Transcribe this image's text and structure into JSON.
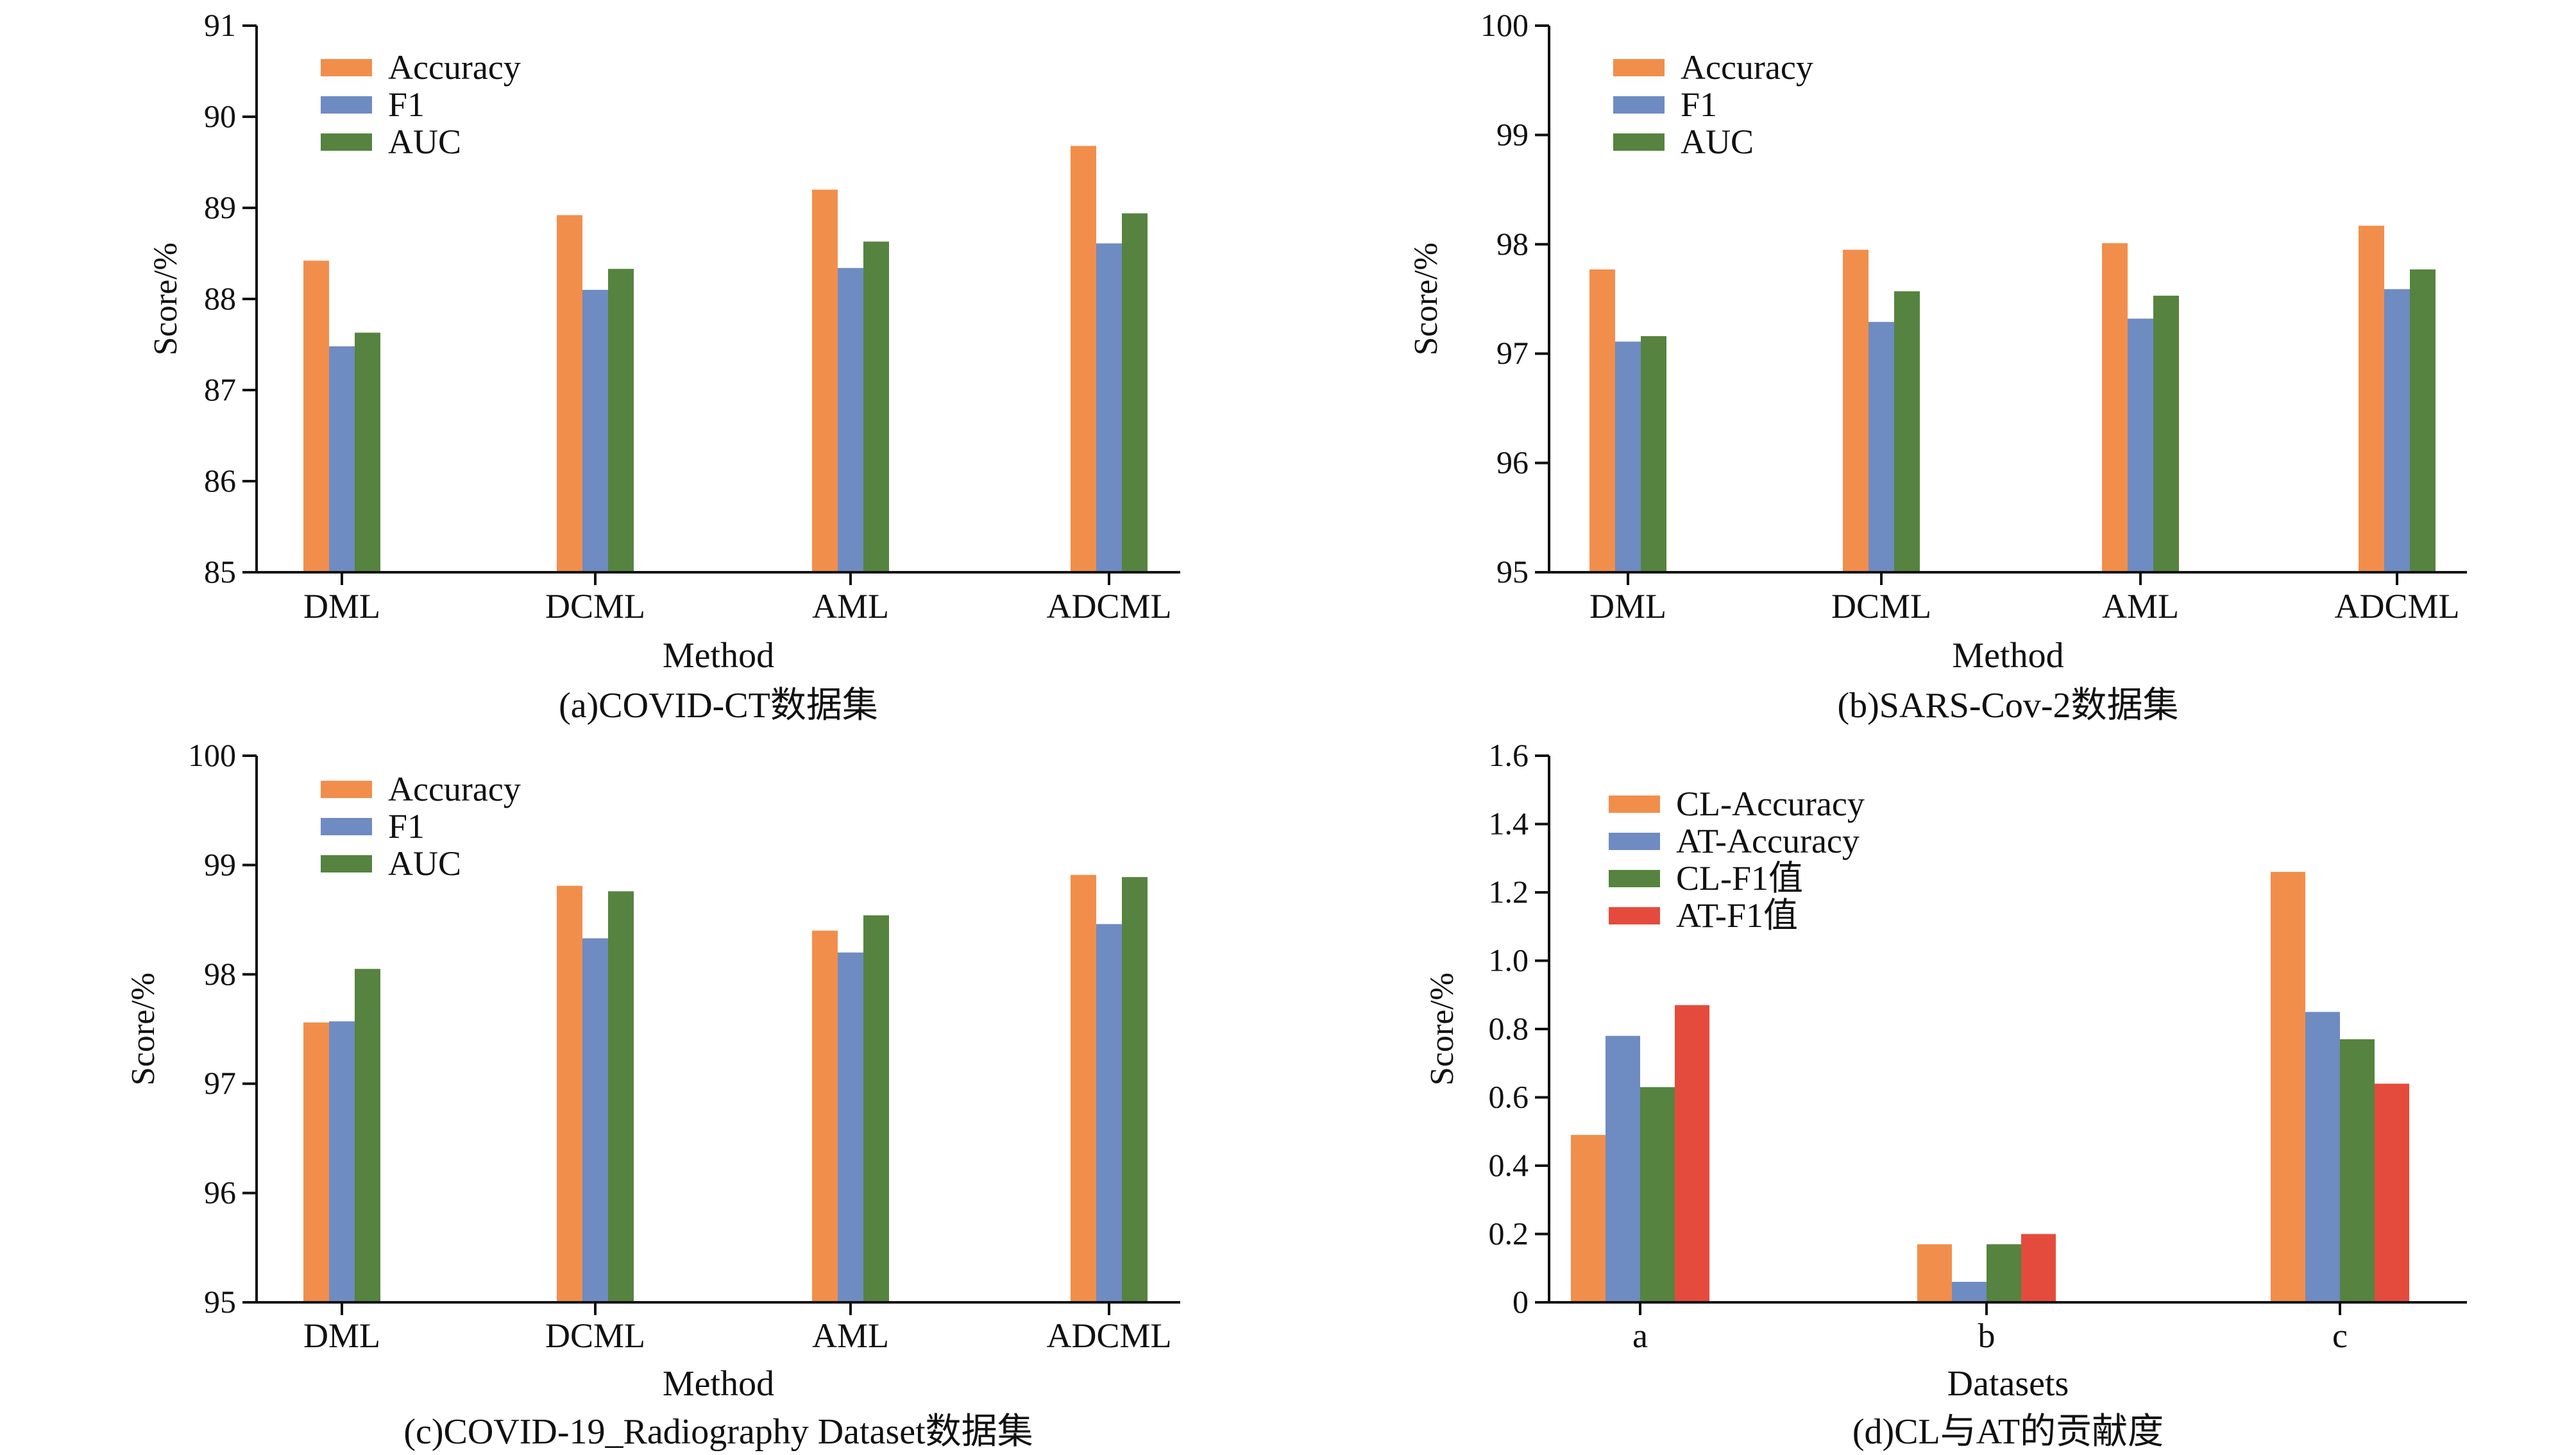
{
  "colors": {
    "orange": "#F28E4B",
    "blue": "#6E8BC2",
    "green": "#56833F",
    "red": "#E54B3C",
    "axis": "#111111"
  },
  "chart_data": [
    {
      "type": "bar",
      "caption": "(a)COVID-CT数据集",
      "xlabel": "Method",
      "ylabel": "Score/%",
      "ylim": [
        85,
        91
      ],
      "yticks": [
        "85",
        "86",
        "87",
        "88",
        "89",
        "90",
        "91"
      ],
      "categories": [
        "DML",
        "DCML",
        "AML",
        "ADCML"
      ],
      "legend_position": "top-left",
      "series": [
        {
          "name": "Accuracy",
          "color": "#F28E4B",
          "values": [
            88.42,
            88.92,
            89.2,
            89.68
          ]
        },
        {
          "name": "F1",
          "color": "#6E8BC2",
          "values": [
            87.48,
            88.1,
            88.34,
            88.61
          ]
        },
        {
          "name": "AUC",
          "color": "#56833F",
          "values": [
            87.63,
            88.33,
            88.63,
            88.94
          ]
        }
      ]
    },
    {
      "type": "bar",
      "caption": "(b)SARS-Cov-2数据集",
      "xlabel": "Method",
      "ylabel": "Score/%",
      "ylim": [
        95,
        100
      ],
      "yticks": [
        "95",
        "96",
        "97",
        "98",
        "99",
        "100"
      ],
      "categories": [
        "DML",
        "DCML",
        "AML",
        "ADCML"
      ],
      "legend_position": "top-left",
      "series": [
        {
          "name": "Accuracy",
          "color": "#F28E4B",
          "values": [
            97.77,
            97.95,
            98.01,
            98.17
          ]
        },
        {
          "name": "F1",
          "color": "#6E8BC2",
          "values": [
            97.11,
            97.29,
            97.32,
            97.59
          ]
        },
        {
          "name": "AUC",
          "color": "#56833F",
          "values": [
            97.16,
            97.57,
            97.53,
            97.77
          ]
        }
      ]
    },
    {
      "type": "bar",
      "caption": "(c)COVID-19_Radiography Dataset数据集",
      "xlabel": "Method",
      "ylabel": "Score/%",
      "ylim": [
        95,
        100
      ],
      "yticks": [
        "95",
        "96",
        "97",
        "98",
        "99",
        "100"
      ],
      "categories": [
        "DML",
        "DCML",
        "AML",
        "ADCML"
      ],
      "legend_position": "top-left",
      "series": [
        {
          "name": "Accuracy",
          "color": "#F28E4B",
          "values": [
            97.56,
            98.81,
            98.4,
            98.91
          ]
        },
        {
          "name": "F1",
          "color": "#6E8BC2",
          "values": [
            97.57,
            98.33,
            98.2,
            98.46
          ]
        },
        {
          "name": "AUC",
          "color": "#56833F",
          "values": [
            98.05,
            98.76,
            98.54,
            98.89
          ]
        }
      ]
    },
    {
      "type": "bar",
      "caption": "(d)CL与AT的贡献度",
      "xlabel": "Datasets",
      "ylabel": "Score/%",
      "ylim": [
        0,
        1.6
      ],
      "yticks": [
        "0",
        "0.2",
        "0.4",
        "0.6",
        "0.8",
        "1.0",
        "1.2",
        "1.4",
        "1.6"
      ],
      "categories": [
        "a",
        "b",
        "c"
      ],
      "legend_position": "top-left",
      "series": [
        {
          "name": "CL-Accuracy",
          "color": "#F28E4B",
          "values": [
            0.49,
            0.17,
            1.26
          ]
        },
        {
          "name": "AT-Accuracy",
          "color": "#6E8BC2",
          "values": [
            0.78,
            0.06,
            0.85
          ]
        },
        {
          "name": "CL-F1值",
          "color": "#56833F",
          "values": [
            0.63,
            0.17,
            0.77
          ]
        },
        {
          "name": "AT-F1值",
          "color": "#E54B3C",
          "values": [
            0.87,
            0.2,
            0.64
          ]
        }
      ]
    }
  ]
}
